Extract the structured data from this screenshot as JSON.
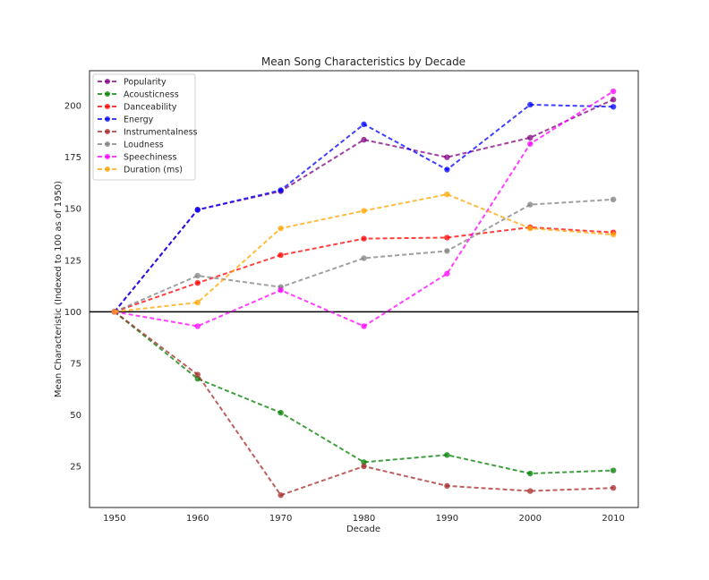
{
  "chart_data": {
    "type": "line",
    "title": "Mean Song Characteristics by Decade",
    "xlabel": "Decade",
    "ylabel": "Mean Characteristic (Indexed to 100 as of 1950)",
    "x": [
      1950,
      1960,
      1970,
      1980,
      1990,
      2000,
      2010
    ],
    "xlim": [
      1947,
      2013
    ],
    "ylim": [
      5,
      217
    ],
    "yticks": [
      25,
      50,
      75,
      100,
      125,
      150,
      175,
      200
    ],
    "grid": false,
    "legend_position": "top-left",
    "reference_line": {
      "y": 100,
      "color": "#000000"
    },
    "series": [
      {
        "name": "Popularity",
        "color": "#800080",
        "values": [
          100,
          149.5,
          158.5,
          183.5,
          175,
          184.5,
          203
        ]
      },
      {
        "name": "Acousticness",
        "color": "#008000",
        "values": [
          100,
          67.5,
          51,
          27,
          30.5,
          21.5,
          23
        ]
      },
      {
        "name": "Danceability",
        "color": "#ff0000",
        "values": [
          100,
          114,
          127.5,
          135.5,
          136,
          141,
          138.5
        ]
      },
      {
        "name": "Energy",
        "color": "#0000ff",
        "values": [
          100,
          149.5,
          159,
          191,
          169,
          200.5,
          199.5
        ]
      },
      {
        "name": "Instrumentalness",
        "color": "#a52a2a",
        "values": [
          100,
          69.5,
          11,
          25,
          15.5,
          13,
          14.5
        ]
      },
      {
        "name": "Loudness",
        "color": "#808080",
        "values": [
          100,
          117.5,
          112,
          126,
          129.5,
          152,
          154.5
        ]
      },
      {
        "name": "Speechiness",
        "color": "#ff00ff",
        "values": [
          100,
          93,
          110.5,
          93,
          118.5,
          181.5,
          207
        ]
      },
      {
        "name": "Duration (ms)",
        "color": "#ffa500",
        "values": [
          100,
          104.5,
          140.5,
          149,
          157,
          140.5,
          137.5
        ]
      }
    ]
  }
}
